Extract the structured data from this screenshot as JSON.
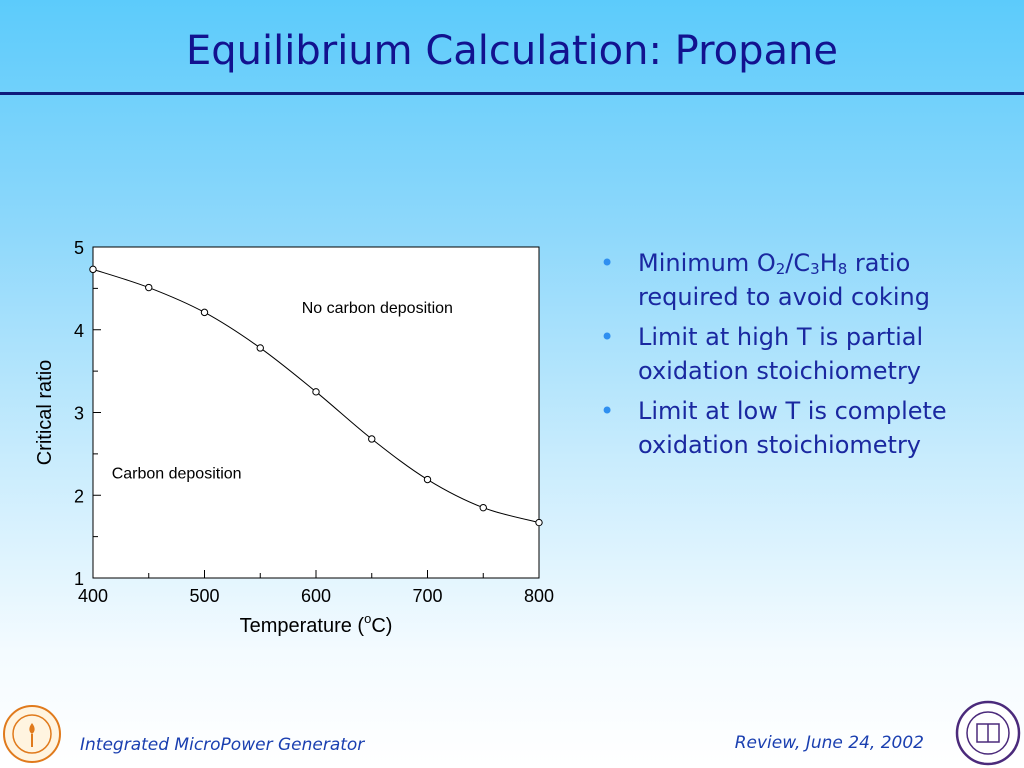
{
  "slide": {
    "title": "Equilibrium Calculation: Propane"
  },
  "chart_data": {
    "type": "line",
    "title": "",
    "xlabel": "Temperature (°C)",
    "ylabel": "Critical ratio",
    "xlim": [
      400,
      800
    ],
    "ylim": [
      1,
      5
    ],
    "x_ticks": [
      400,
      500,
      600,
      700,
      800
    ],
    "y_ticks": [
      1,
      2,
      3,
      4,
      5
    ],
    "grid": false,
    "legend": "none",
    "series": [
      {
        "x": [
          400,
          450,
          500,
          550,
          600,
          650,
          700,
          750,
          800
        ],
        "y": [
          4.73,
          4.51,
          4.21,
          3.78,
          3.25,
          2.68,
          2.19,
          1.85,
          1.67
        ],
        "marker": "open-circle",
        "color": "#000000"
      }
    ],
    "annotations": [
      {
        "text": "No carbon deposition",
        "x": 655,
        "y": 4.2
      },
      {
        "text": "Carbon deposition",
        "x": 475,
        "y": 2.2
      }
    ]
  },
  "bullets": [
    {
      "parts": [
        {
          "text": "Minimum O"
        },
        {
          "text": "2",
          "sub": true
        },
        {
          "text": "/C"
        },
        {
          "text": "3",
          "sub": true
        },
        {
          "text": "H"
        },
        {
          "text": "8",
          "sub": true
        },
        {
          "text": " ratio required to avoid coking"
        }
      ]
    },
    {
      "parts": [
        {
          "text": "Limit at high T is partial oxidation stoichiometry"
        }
      ]
    },
    {
      "parts": [
        {
          "text": "Limit at low T is complete oxidation stoichiometry"
        }
      ]
    }
  ],
  "bullet_glyph": "•",
  "footer": {
    "left": "Integrated MicroPower Generator",
    "right": "Review, June 24, 2002"
  },
  "logos": {
    "left": {
      "icon": "caltech-seal-icon",
      "color": "#e07a1c"
    },
    "right": {
      "icon": "northwestern-seal-icon",
      "color": "#4b2a7b"
    }
  }
}
